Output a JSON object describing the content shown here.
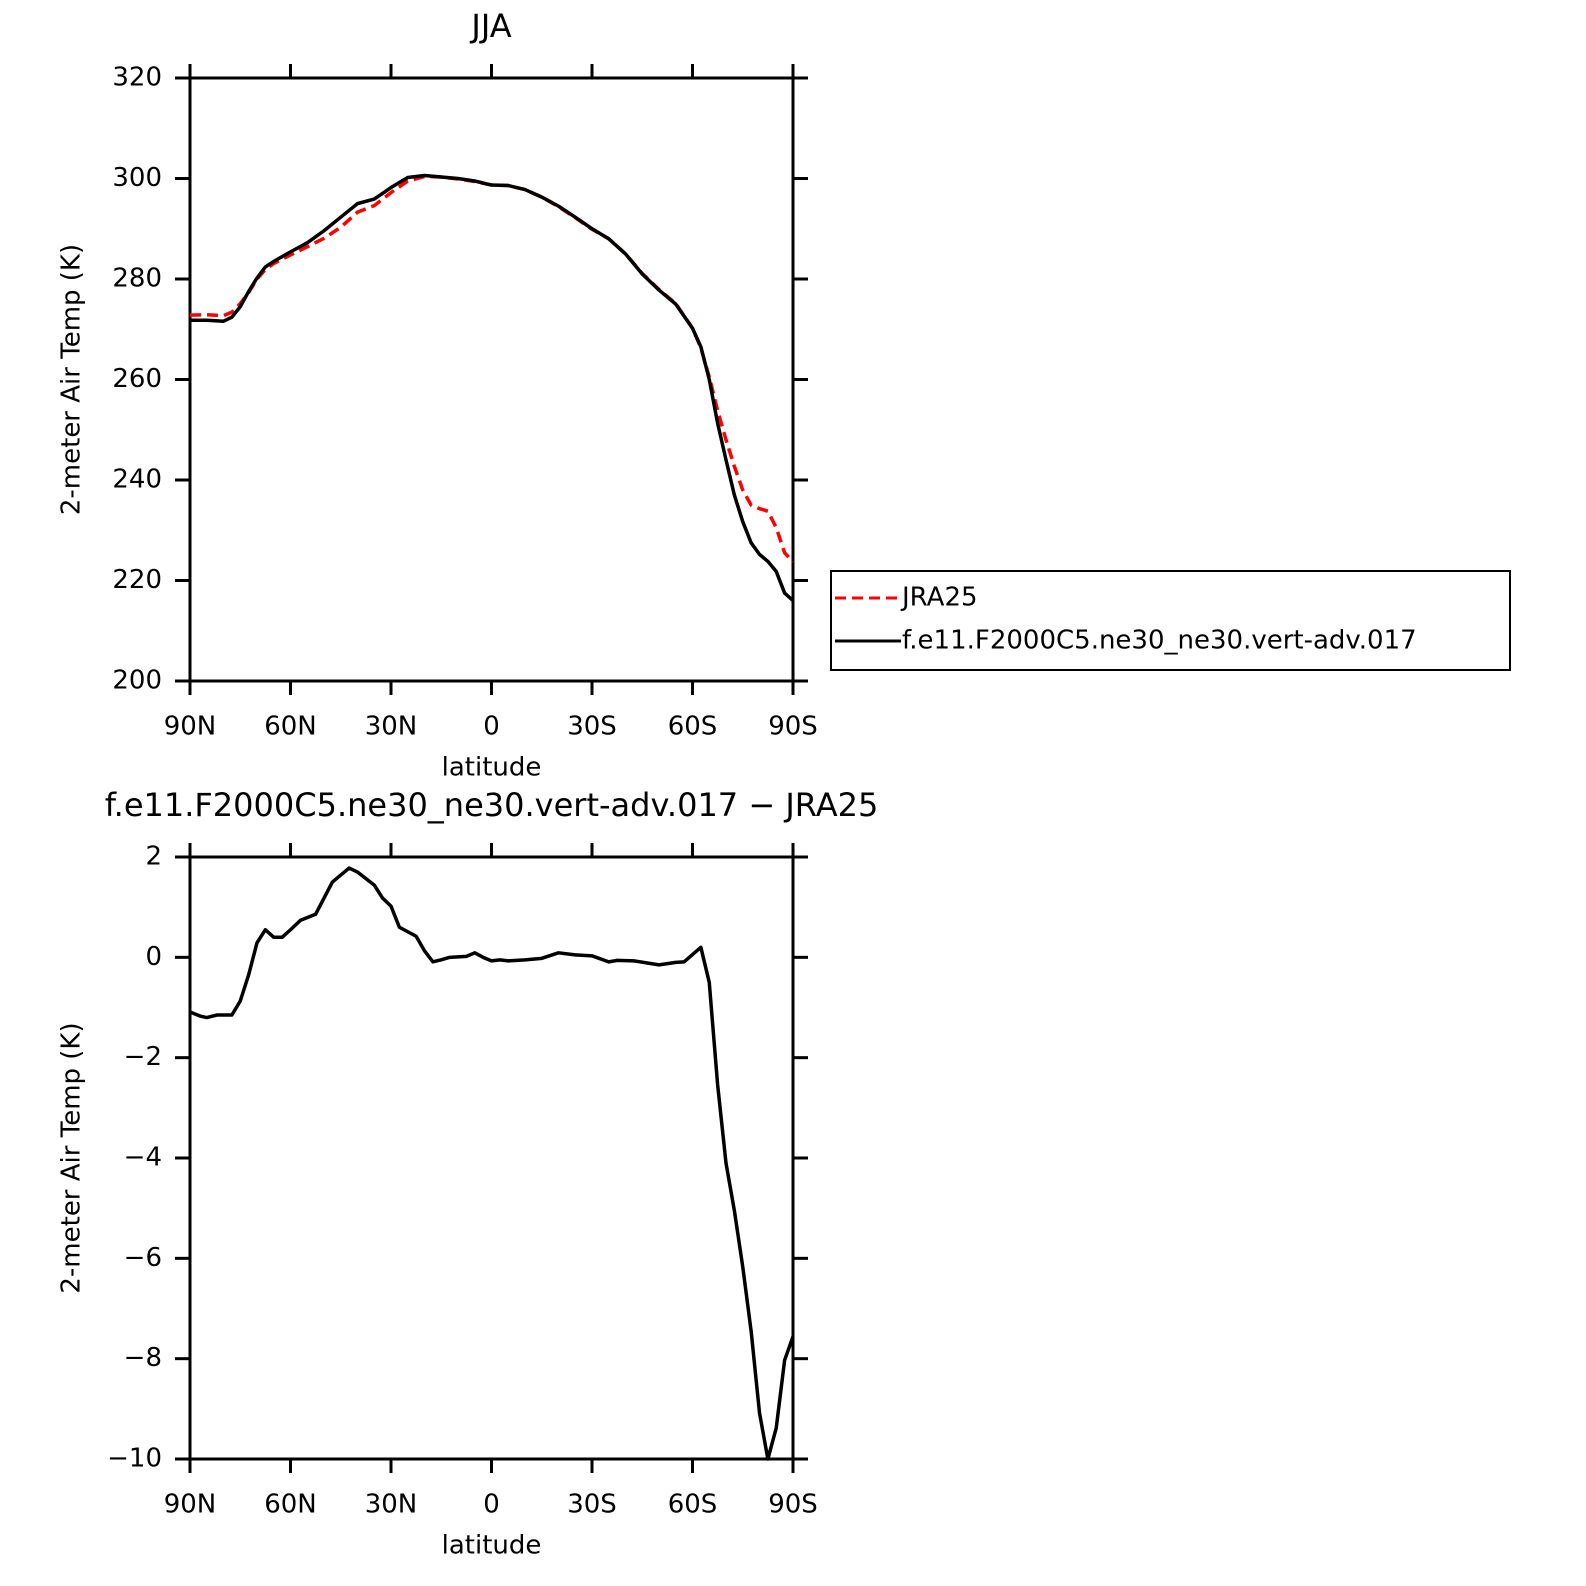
{
  "chart_data": [
    {
      "type": "line",
      "title": "JJA",
      "x_label": "latitude",
      "y_label": "2-meter Air Temp (K)",
      "x": [
        90,
        85,
        80,
        77.5,
        75,
        72.5,
        70,
        67.5,
        65,
        60,
        55,
        50,
        45,
        40,
        35,
        30,
        25,
        20,
        15,
        10,
        5,
        0,
        -5,
        -10,
        -15,
        -20,
        -25,
        -30,
        -35,
        -40,
        -45,
        -50,
        -55,
        -60,
        -62.5,
        -65,
        -67.5,
        -70,
        -72.5,
        -75,
        -77.5,
        -80,
        -82.5,
        -85,
        -87.5,
        -90
      ],
      "series": [
        {
          "name": "JRA25",
          "color": "#ff0000",
          "dash": true,
          "values": [
            272.8,
            272.9,
            272.7,
            273.4,
            275.1,
            277.3,
            280.0,
            281.9,
            283.1,
            284.8,
            286.4,
            288.1,
            290.3,
            293.3,
            294.6,
            297.2,
            299.5,
            300.4,
            300.3,
            299.9,
            299.4,
            298.7,
            298.6,
            297.8,
            296.3,
            294.4,
            292.2,
            289.9,
            288.0,
            285.0,
            281.1,
            277.9,
            275.1,
            270.2,
            266.3,
            260.5,
            253.8,
            248.0,
            242.7,
            238.0,
            235.0,
            234.3,
            233.8,
            230.5,
            225.5,
            223.7
          ]
        },
        {
          "name": "f.e11.F2000C5.ne30_ne30.vert-adv.017",
          "color": "#000000",
          "dash": false,
          "values": [
            271.8,
            271.8,
            271.6,
            272.4,
            274.5,
            277.5,
            280.2,
            282.4,
            283.5,
            285.4,
            287.2,
            289.6,
            292.3,
            295.0,
            295.9,
            298.2,
            300.2,
            300.6,
            300.3,
            300.0,
            299.5,
            298.7,
            298.6,
            297.8,
            296.3,
            294.5,
            292.3,
            290.0,
            288.0,
            285.0,
            281.0,
            277.8,
            275.0,
            270.2,
            266.5,
            260.0,
            251.3,
            244.0,
            237.0,
            231.7,
            227.5,
            225.2,
            223.8,
            221.8,
            217.5,
            216.0
          ]
        }
      ],
      "xlim": [
        90,
        -90
      ],
      "xticks": [
        {
          "value": 90,
          "label": "90N"
        },
        {
          "value": 60,
          "label": "60N"
        },
        {
          "value": 30,
          "label": "30N"
        },
        0,
        {
          "value": -30,
          "label": "30S"
        },
        {
          "value": -60,
          "label": "60S"
        },
        {
          "value": -90,
          "label": "90S"
        }
      ],
      "ylim": [
        200,
        320
      ],
      "yticks": [
        200,
        220,
        240,
        260,
        280,
        300,
        320
      ],
      "legend": "right"
    },
    {
      "type": "line",
      "title": "f.e11.F2000C5.ne30_ne30.vert-adv.017 − JRA25",
      "x_label": "latitude",
      "y_label": "2-meter Air Temp (K)",
      "x": [
        90,
        87,
        85,
        82,
        77.5,
        75,
        72.5,
        70,
        67.5,
        65,
        62.5,
        60,
        57,
        52.5,
        47.5,
        42.5,
        40,
        35,
        32.5,
        30,
        27.5,
        22.5,
        20,
        17.5,
        15,
        12.5,
        7.5,
        5,
        2.5,
        0,
        -2.5,
        -5,
        -10,
        -15,
        -20,
        -25,
        -30,
        -35,
        -37.5,
        -42.5,
        -50,
        -55,
        -57.5,
        -62.5,
        -65,
        -67.5,
        -70,
        -72.5,
        -75,
        -77.5,
        -80,
        -82.5,
        -85,
        -87.5,
        -90
      ],
      "series": [
        {
          "color": "#000000",
          "dash": false,
          "values": [
            -1.09,
            -1.17,
            -1.2,
            -1.15,
            -1.15,
            -0.87,
            -0.35,
            0.29,
            0.55,
            0.4,
            0.4,
            0.55,
            0.74,
            0.86,
            1.5,
            1.78,
            1.7,
            1.44,
            1.18,
            1.02,
            0.6,
            0.42,
            0.13,
            -0.09,
            -0.05,
            0.0,
            0.02,
            0.09,
            0.0,
            -0.07,
            -0.05,
            -0.07,
            -0.05,
            -0.02,
            0.09,
            0.05,
            0.03,
            -0.09,
            -0.06,
            -0.07,
            -0.15,
            -0.1,
            -0.09,
            0.2,
            -0.5,
            -2.54,
            -4.1,
            -5.05,
            -6.17,
            -7.45,
            -9.08,
            -10.0,
            -9.38,
            -8.03,
            -7.56
          ]
        }
      ],
      "xlim": [
        90,
        -90
      ],
      "xticks": [
        {
          "value": 90,
          "label": "90N"
        },
        {
          "value": 60,
          "label": "60N"
        },
        {
          "value": 30,
          "label": "30N"
        },
        0,
        {
          "value": -30,
          "label": "30S"
        },
        {
          "value": -60,
          "label": "60S"
        },
        {
          "value": -90,
          "label": "90S"
        }
      ],
      "ylim": [
        -10,
        2
      ],
      "yticks": [
        {
          "value": -10,
          "label": "−10"
        },
        {
          "value": -8,
          "label": "−8"
        },
        {
          "value": -6,
          "label": "−6"
        },
        {
          "value": -4,
          "label": "−4"
        },
        {
          "value": -2,
          "label": "−2"
        },
        0,
        2
      ]
    }
  ]
}
